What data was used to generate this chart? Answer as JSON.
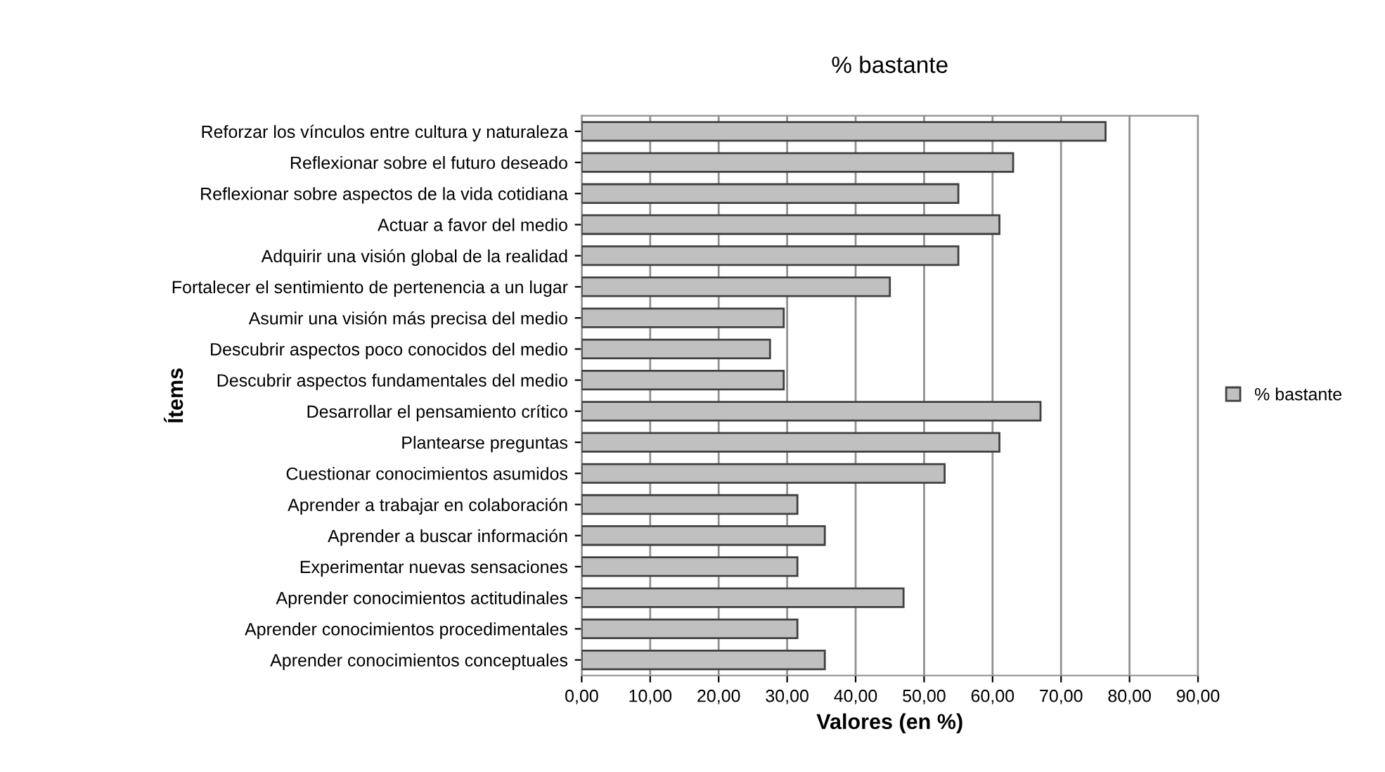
{
  "chart_data": {
    "type": "bar",
    "orientation": "horizontal",
    "title": "% bastante",
    "xlabel": "Valores (en %)",
    "ylabel": "Ítems",
    "categories": [
      "Reforzar los vínculos entre cultura y naturaleza",
      "Reflexionar sobre el futuro deseado",
      "Reflexionar sobre aspectos de la vida cotidiana",
      "Actuar a favor del medio",
      "Adquirir una visión global de la realidad",
      "Fortalecer el sentimiento de pertenencia a un lugar",
      "Asumir una visión más precisa del medio",
      "Descubrir aspectos poco conocidos del medio",
      "Descubrir aspectos fundamentales del medio",
      "Desarrollar el pensamiento crítico",
      "Plantearse preguntas",
      "Cuestionar conocimientos asumidos",
      "Aprender a trabajar en colaboración",
      "Aprender a buscar información",
      "Experimentar nuevas sensaciones",
      "Aprender conocimientos actitudinales",
      "Aprender conocimientos procedimentales",
      "Aprender conocimientos conceptuales"
    ],
    "series": [
      {
        "name": "% bastante",
        "color": "#c0c0c0",
        "values": [
          76.5,
          63,
          55,
          61,
          55,
          45,
          29.5,
          27.5,
          29.5,
          67,
          61,
          53,
          31.5,
          35.5,
          31.5,
          47,
          31.5,
          35.5
        ]
      }
    ],
    "xlim": [
      0,
      90
    ],
    "xticks": [
      {
        "value": 0,
        "label": "0,00"
      },
      {
        "value": 10,
        "label": "10,00"
      },
      {
        "value": 20,
        "label": "20,00"
      },
      {
        "value": 30,
        "label": "30,00"
      },
      {
        "value": 40,
        "label": "40,00"
      },
      {
        "value": 50,
        "label": "50,00"
      },
      {
        "value": 60,
        "label": "60,00"
      },
      {
        "value": 70,
        "label": "70,00"
      },
      {
        "value": 80,
        "label": "80,00"
      },
      {
        "value": 90,
        "label": "90,00"
      }
    ],
    "grid": "x",
    "legend": "right"
  }
}
